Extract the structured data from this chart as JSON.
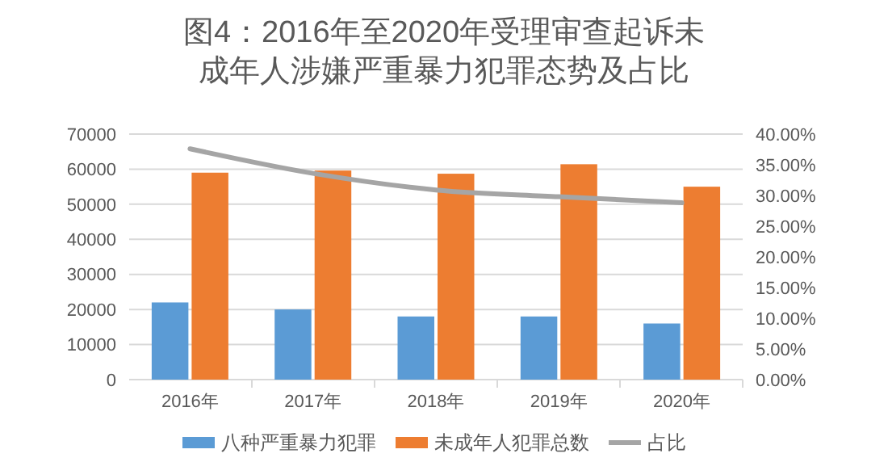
{
  "chart_data": {
    "type": "bar",
    "title": "图4：2016年至2020年受理审查起诉未成年人涉嫌严重暴力犯罪态势及占比",
    "categories": [
      "2016年",
      "2017年",
      "2018年",
      "2019年",
      "2020年"
    ],
    "series": [
      {
        "name": "八种严重暴力犯罪",
        "color": "#5b9bd5",
        "values": [
          22000,
          20000,
          18000,
          18000,
          16000
        ]
      },
      {
        "name": "未成年人犯罪总数",
        "color": "#ed7d31",
        "values": [
          59000,
          59600,
          58700,
          61400,
          55000
        ]
      },
      {
        "name": "占比",
        "type": "line",
        "axis": "y2",
        "color": "#a5a5a5",
        "values": [
          37.6,
          33.6,
          30.9,
          29.8,
          28.8
        ]
      }
    ],
    "ylim": [
      0,
      70000
    ],
    "yticks": [
      0,
      10000,
      20000,
      30000,
      40000,
      50000,
      60000,
      70000
    ],
    "y2lim": [
      0,
      40
    ],
    "y2ticks": [
      {
        "value": 0,
        "label": "0.00%"
      },
      {
        "value": 5,
        "label": "5.00%"
      },
      {
        "value": 10,
        "label": "10.00%"
      },
      {
        "value": 15,
        "label": "15.00%"
      },
      {
        "value": 20,
        "label": "20.00%"
      },
      {
        "value": 25,
        "label": "25.00%"
      },
      {
        "value": 30,
        "label": "30.00%"
      },
      {
        "value": 35,
        "label": "35.00%"
      },
      {
        "value": 40,
        "label": "40.00%"
      }
    ],
    "grid": "y",
    "legend": "bottom",
    "marker": "none"
  }
}
